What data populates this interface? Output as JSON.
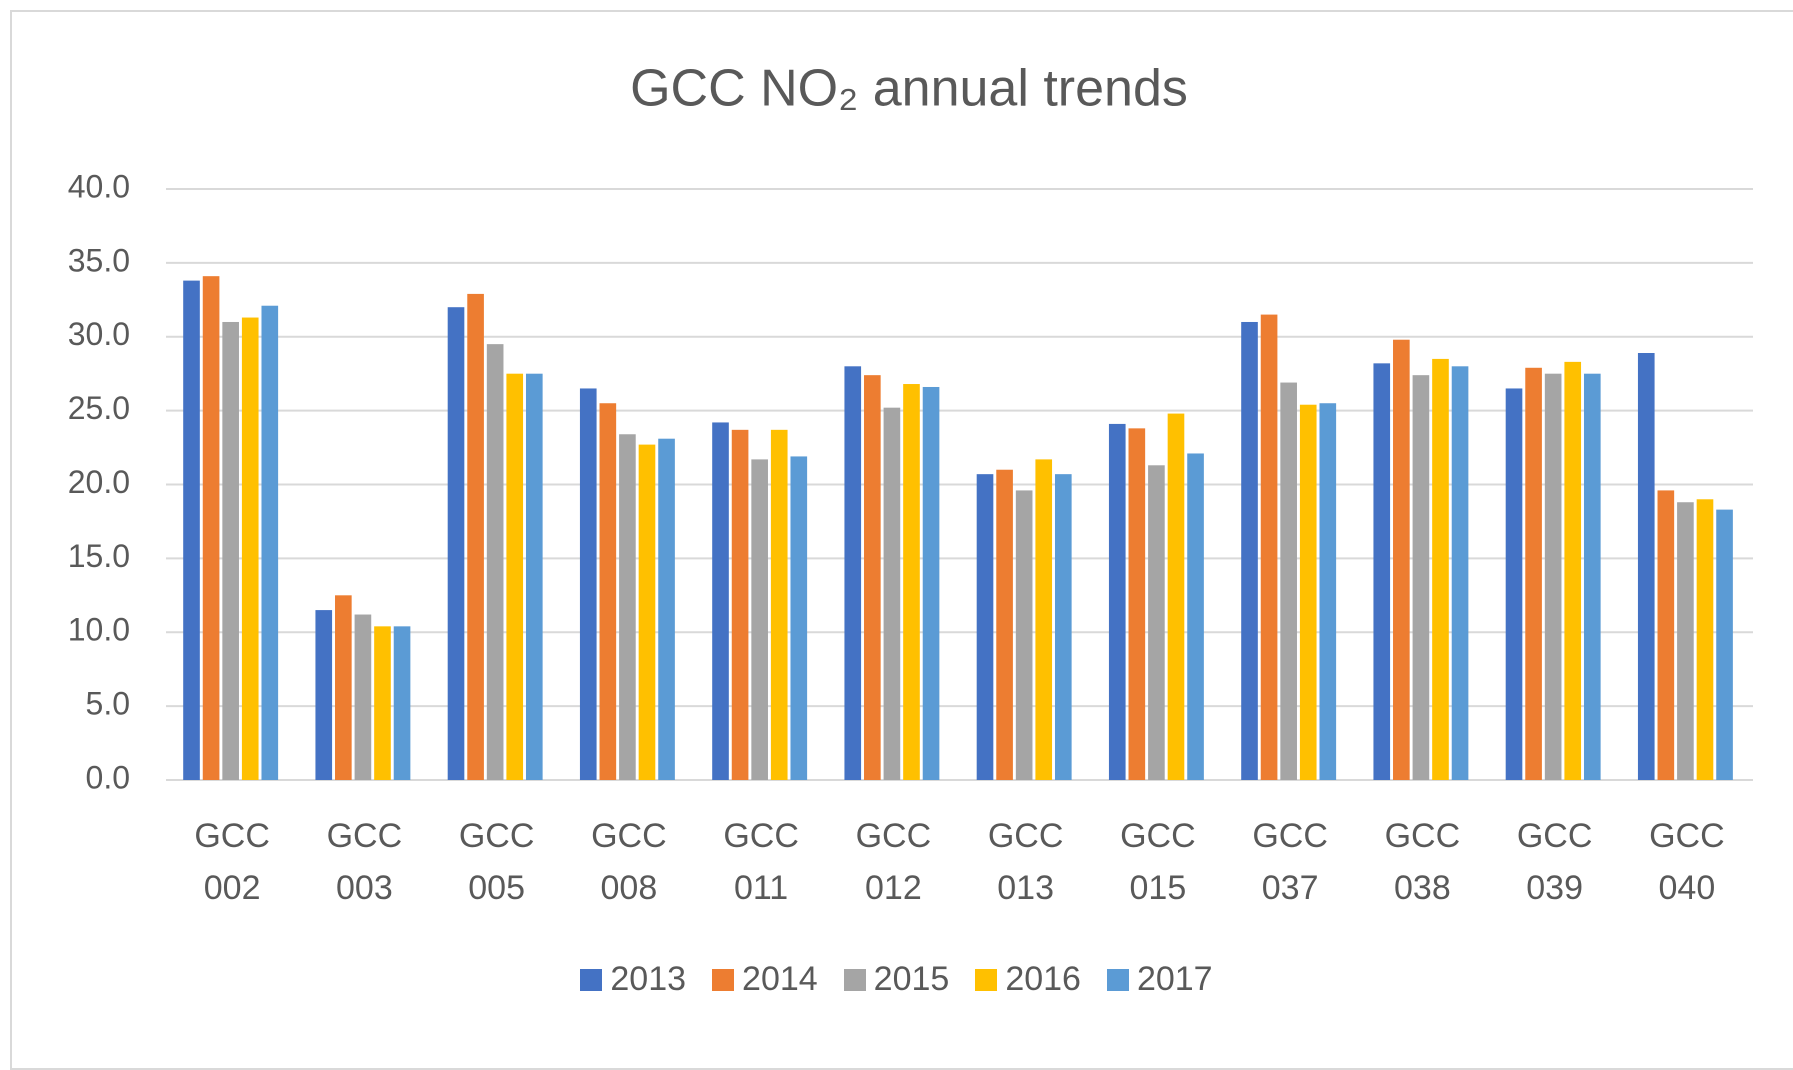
{
  "chart_data": {
    "type": "bar",
    "title": "GCC NO₂ annual trends",
    "categories": [
      "GCC 002",
      "GCC 003",
      "GCC 005",
      "GCC 008",
      "GCC 011",
      "GCC 012",
      "GCC 013",
      "GCC 015",
      "GCC 037",
      "GCC 038",
      "GCC 039",
      "GCC 040"
    ],
    "series": [
      {
        "name": "2013",
        "color": "#4472c4",
        "values": [
          33.8,
          11.5,
          32.0,
          26.5,
          24.2,
          28.0,
          20.7,
          24.1,
          31.0,
          28.2,
          26.5,
          28.9
        ]
      },
      {
        "name": "2014",
        "color": "#ed7d31",
        "values": [
          34.1,
          12.5,
          32.9,
          25.5,
          23.7,
          27.4,
          21.0,
          23.8,
          31.5,
          29.8,
          27.9,
          19.6
        ]
      },
      {
        "name": "2015",
        "color": "#a5a5a5",
        "values": [
          31.0,
          11.2,
          29.5,
          23.4,
          21.7,
          25.2,
          19.6,
          21.3,
          26.9,
          27.4,
          27.5,
          18.8
        ]
      },
      {
        "name": "2016",
        "color": "#ffc000",
        "values": [
          31.3,
          10.4,
          27.5,
          22.7,
          23.7,
          26.8,
          21.7,
          24.8,
          25.4,
          28.5,
          28.3,
          19.0
        ]
      },
      {
        "name": "2017",
        "color": "#5b9bd5",
        "values": [
          32.1,
          10.4,
          27.5,
          23.1,
          21.9,
          26.6,
          20.7,
          22.1,
          25.5,
          28.0,
          27.5,
          18.3
        ]
      }
    ],
    "ylim": [
      0,
      40
    ],
    "yticks": [
      {
        "value": 0,
        "label": "0.0"
      },
      {
        "value": 5,
        "label": "5.0"
      },
      {
        "value": 10,
        "label": "10.0"
      },
      {
        "value": 15,
        "label": "15.0"
      },
      {
        "value": 20,
        "label": "20.0"
      },
      {
        "value": 25,
        "label": "25.0"
      },
      {
        "value": 30,
        "label": "30.0"
      },
      {
        "value": 35,
        "label": "35.0"
      },
      {
        "value": 40,
        "label": "40.0"
      }
    ],
    "grid": true,
    "legend": "bottom"
  }
}
